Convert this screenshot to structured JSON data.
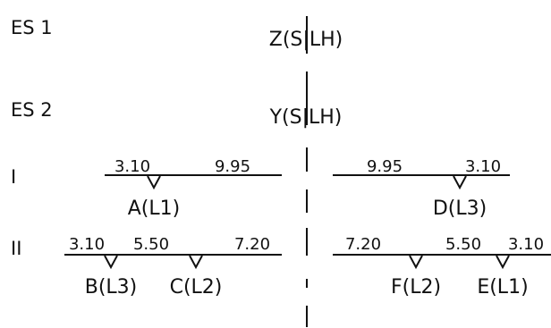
{
  "rows": {
    "es1": {
      "label": "ES 1",
      "hanger": "Z(S|LH)"
    },
    "es2": {
      "label": "ES 2",
      "hanger": "Y(S|LH)"
    },
    "i": {
      "label": "I",
      "dims": [
        "3.10",
        "9.95",
        "9.95",
        "3.10"
      ],
      "points": [
        "A(L1)",
        "D(L3)"
      ]
    },
    "ii": {
      "label": "II",
      "dims": [
        "3.10",
        "5.50",
        "7.20",
        "7.20",
        "5.50",
        "3.10"
      ],
      "points": [
        "B(L3)",
        "C(L2)",
        "F(L2)",
        "E(L1)"
      ]
    }
  }
}
